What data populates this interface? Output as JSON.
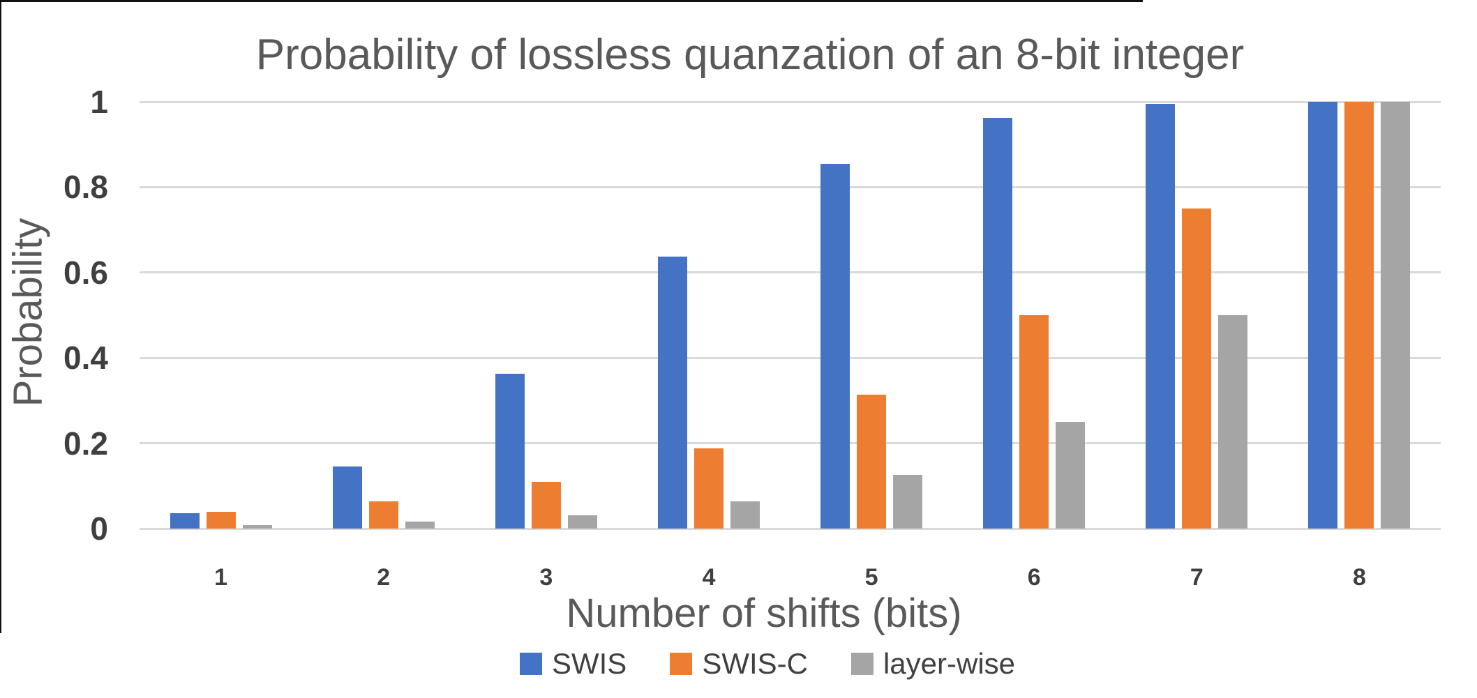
{
  "chart_data": {
    "type": "bar",
    "title": "Probability of lossless quanzation of an 8-bit integer",
    "xlabel": "Number of shifts (bits)",
    "ylabel": "Probability",
    "categories": [
      "1",
      "2",
      "3",
      "4",
      "5",
      "6",
      "7",
      "8"
    ],
    "series": [
      {
        "name": "SWIS",
        "color": "#4472C4",
        "values": [
          0.036,
          0.145,
          0.363,
          0.637,
          0.855,
          0.963,
          0.995,
          1.0
        ]
      },
      {
        "name": "SWIS-C",
        "color": "#ED7D31",
        "values": [
          0.039,
          0.063,
          0.109,
          0.188,
          0.313,
          0.5,
          0.75,
          1.0
        ]
      },
      {
        "name": "layer-wise",
        "color": "#A5A5A5",
        "values": [
          0.008,
          0.016,
          0.031,
          0.063,
          0.125,
          0.25,
          0.5,
          1.0
        ]
      }
    ],
    "ylim": [
      0,
      1
    ],
    "yticks": [
      0,
      0.2,
      0.4,
      0.6,
      0.8,
      1
    ],
    "ytick_labels": [
      "0",
      "0.2",
      "0.4",
      "0.6",
      "0.8",
      "1"
    ],
    "grid": true,
    "gridline_color": "#d9d9d9",
    "legend_position": "bottom",
    "text_colors": {
      "title": "#595959",
      "ticks": "#3f3f3f",
      "legend": "#404040"
    }
  }
}
